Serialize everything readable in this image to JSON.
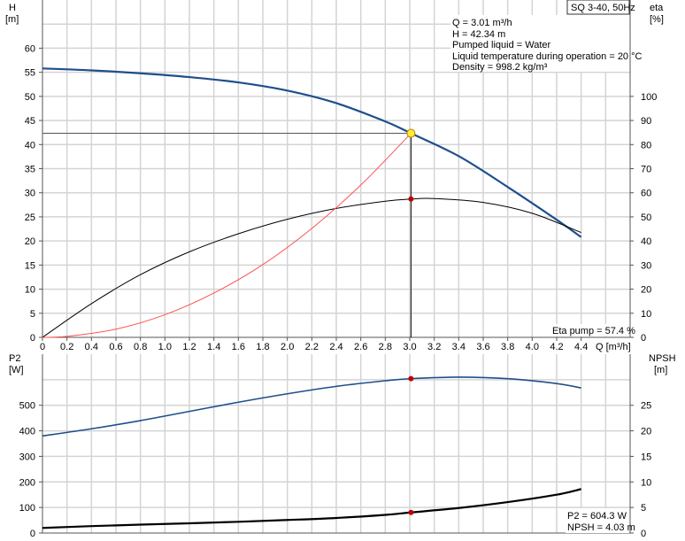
{
  "chart_data": [
    {
      "type": "line",
      "title": "SQ 3-40, 50Hz",
      "xlabel": "Q [m³/h]",
      "ylabel_left": "H\n[m]",
      "ylabel_left_name": "H",
      "ylabel_left_unit": "[m]",
      "ylabel_right_name": "eta",
      "ylabel_right_unit": "[%]",
      "xlim": [
        0,
        4.8
      ],
      "ylim_left": [
        0,
        70
      ],
      "ylim_right": [
        0,
        140
      ],
      "x_ticks": [
        "0",
        "0.2",
        "0.4",
        "0.6",
        "0.8",
        "1.0",
        "1.2",
        "1.4",
        "1.6",
        "1.8",
        "2.0",
        "2.2",
        "2.4",
        "2.6",
        "2.8",
        "3.0",
        "3.2",
        "3.4",
        "3.6",
        "3.8",
        "4.0",
        "4.2",
        "4.4"
      ],
      "y_left_ticks": [
        0,
        5,
        10,
        15,
        20,
        25,
        30,
        35,
        40,
        45,
        50,
        55,
        60
      ],
      "y_right_ticks": [
        0,
        10,
        20,
        30,
        40,
        50,
        60,
        70,
        80,
        90,
        100
      ],
      "grid": true,
      "info_box": [
        "Q = 3.01 m³/h",
        "H = 42.34 m",
        "Pumped liquid = Water",
        "Liquid temperature during operation = 20 °C",
        "Density = 998.2 kg/m³"
      ],
      "annotation": "Eta pump = 57.4 %",
      "series": [
        {
          "key": "H",
          "axis": "left",
          "color": "#1f4e8c",
          "x": [
            0,
            0.4,
            0.8,
            1.2,
            1.6,
            2.0,
            2.4,
            2.8,
            3.01,
            3.4,
            3.8,
            4.2,
            4.4
          ],
          "y": [
            55.8,
            55.4,
            54.8,
            54.0,
            52.9,
            51.2,
            48.6,
            44.8,
            42.34,
            37.6,
            31.2,
            24.4,
            20.8
          ]
        },
        {
          "key": "eta",
          "axis": "right",
          "color": "#000000",
          "x": [
            0,
            0.4,
            0.8,
            1.2,
            1.6,
            2.0,
            2.4,
            2.8,
            3.01,
            3.2,
            3.6,
            4.0,
            4.4
          ],
          "y": [
            0,
            14,
            26,
            35.5,
            43,
            49,
            53.5,
            56.5,
            57.4,
            57.6,
            56,
            51.5,
            43.5
          ]
        },
        {
          "key": "system",
          "axis": "left",
          "color": "#ff5050",
          "x": [
            0,
            0.2,
            0.6,
            1.0,
            1.4,
            1.8,
            2.2,
            2.6,
            3.01
          ],
          "y": [
            0,
            0.2,
            1.7,
            4.7,
            9.2,
            15.1,
            22.6,
            31.6,
            42.34
          ]
        }
      ],
      "operating_point": {
        "q": 3.01,
        "h": 42.34,
        "eta": 57.4
      }
    },
    {
      "type": "line",
      "xlabel": "",
      "ylabel_left_name": "P2",
      "ylabel_left_unit": "[W]",
      "ylabel_right_name": "NPSH",
      "ylabel_right_unit": "[m]",
      "xlim": [
        0,
        4.8
      ],
      "ylim_left": [
        0,
        700
      ],
      "ylim_right": [
        0,
        35
      ],
      "y_left_ticks": [
        0,
        100,
        200,
        300,
        400,
        500
      ],
      "y_right_ticks": [
        0,
        5,
        10,
        15,
        20,
        25
      ],
      "grid": true,
      "annotation": [
        "P2 = 604.3 W",
        "NPSH = 4.03 m"
      ],
      "series": [
        {
          "key": "P2",
          "axis": "left",
          "color": "#1f4e8c",
          "x": [
            0,
            0.4,
            0.8,
            1.2,
            1.6,
            2.0,
            2.4,
            2.8,
            3.01,
            3.4,
            3.8,
            4.2,
            4.4
          ],
          "y": [
            380,
            408,
            440,
            476,
            512,
            545,
            574,
            596,
            604.3,
            610,
            604,
            585,
            568
          ]
        },
        {
          "key": "NPSH",
          "axis": "right",
          "color": "#000000",
          "x": [
            0,
            0.4,
            0.8,
            1.2,
            1.6,
            2.0,
            2.4,
            2.8,
            3.01,
            3.4,
            3.8,
            4.2,
            4.4
          ],
          "y": [
            1.0,
            1.35,
            1.65,
            1.9,
            2.2,
            2.55,
            2.95,
            3.55,
            4.03,
            4.9,
            6.05,
            7.5,
            8.6
          ]
        }
      ],
      "operating_point": {
        "q": 3.01,
        "p2": 604.3,
        "npsh": 4.03
      }
    }
  ]
}
